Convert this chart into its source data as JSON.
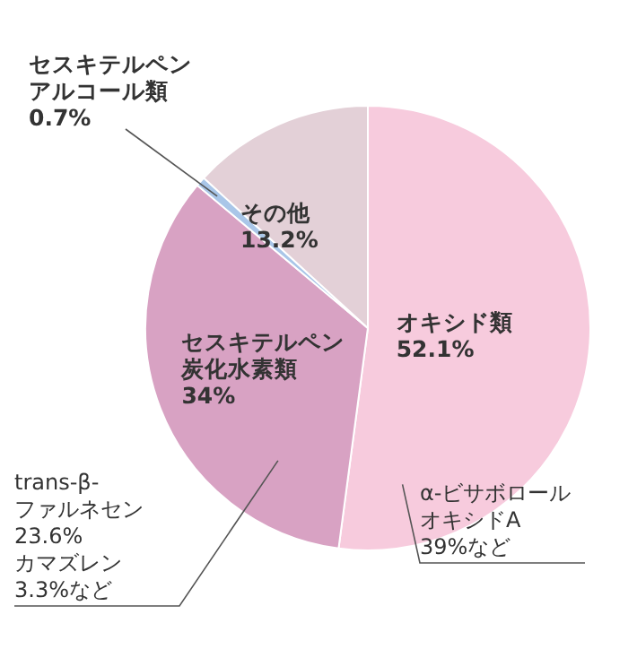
{
  "chart_data": {
    "type": "pie",
    "categories": [
      "オキシド類",
      "セスキテルペン炭化水素類",
      "セスキテルペンアルコール類",
      "その他"
    ],
    "values": [
      52.1,
      34,
      0.7,
      13.2
    ],
    "value_labels": [
      "52.1%",
      "34%",
      "0.7%",
      "13.2%"
    ],
    "colors": [
      "#f7cbdd",
      "#d8a2c3",
      "#a9c6e8",
      "#e3d0d7"
    ],
    "annotations": [
      "α-ビサボロールオキシドA\n39%など",
      "trans-β-\nファルネセン\n23.6%\nカマズレン\n3.3%など"
    ]
  }
}
